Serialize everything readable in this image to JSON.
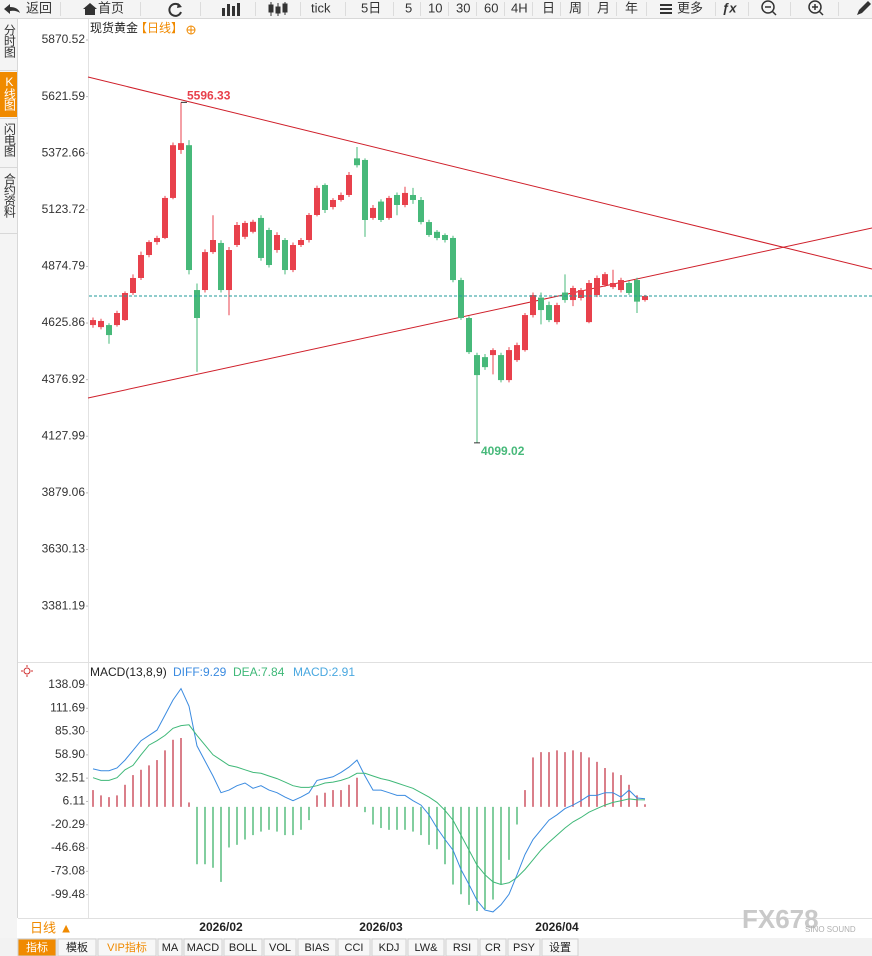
{
  "toolbar": {
    "items": [
      "返回",
      "首页",
      "tick",
      "5日",
      "5",
      "10",
      "30",
      "60",
      "4H",
      "日",
      "周",
      "月",
      "年",
      "更多",
      "ƒx"
    ]
  },
  "sidebar": {
    "tabs": [
      "分时图",
      "K线图",
      "闪电图",
      "合约资料"
    ],
    "active": 1
  },
  "chart_data": [
    {
      "type": "candlestick",
      "title": "现货黄金",
      "subtitle": "【日线】",
      "categories": [
        null,
        null,
        null,
        null,
        null,
        null,
        null,
        null,
        null,
        null,
        null,
        null,
        null,
        null,
        null,
        null,
        "2026/02",
        null,
        null,
        null,
        null,
        null,
        null,
        null,
        null,
        null,
        null,
        null,
        null,
        null,
        null,
        null,
        null,
        null,
        null,
        null,
        "2026/03",
        null,
        null,
        null,
        null,
        null,
        null,
        null,
        null,
        null,
        null,
        null,
        null,
        null,
        null,
        null,
        null,
        null,
        null,
        null,
        null,
        null,
        "2026/04",
        null,
        null,
        null,
        null,
        null,
        null,
        null,
        null,
        null,
        null,
        null
      ],
      "open": [
        4617,
        4608,
        4617,
        4617,
        4639,
        4758,
        4824,
        4925,
        4982,
        5000,
        5176,
        5387,
        5408,
        4771,
        4771,
        4938,
        4978,
        4771,
        4969,
        5005,
        5027,
        5088,
        5035,
        4947,
        4991,
        4859,
        4969,
        4991,
        5101,
        5233,
        5136,
        5167,
        5189,
        5350,
        5343,
        5088,
        5160,
        5088,
        5189,
        5145,
        5189,
        5167,
        5070,
        5027,
        5013,
        5000,
        4815,
        4648,
        4485,
        4476,
        4485,
        4485,
        4375,
        4463,
        4507,
        4661,
        4738,
        4705,
        4630,
        4760,
        4727,
        4736,
        4630,
        4749,
        4793,
        4784,
        4771,
        4802,
        4815,
        4727
      ],
      "high": [
        4650,
        4645,
        4625,
        4680,
        4765,
        4840,
        4940,
        4990,
        5010,
        5185,
        5420,
        5596.33,
        5430,
        4800,
        4950,
        5100,
        4990,
        4960,
        5070,
        5075,
        5080,
        5100,
        5045,
        5025,
        5000,
        4980,
        5000,
        5110,
        5230,
        5240,
        5175,
        5200,
        5290,
        5400,
        5350,
        5145,
        5170,
        5185,
        5200,
        5225,
        5220,
        5180,
        5080,
        5035,
        5020,
        5010,
        4825,
        4655,
        4495,
        4490,
        4515,
        4495,
        4520,
        4540,
        4670,
        4760,
        4760,
        4720,
        4715,
        4840,
        4790,
        4780,
        4815,
        4835,
        4850,
        4860,
        4825,
        4810,
        4825,
        4750
      ],
      "low": [
        4605,
        4598,
        4535,
        4610,
        4635,
        4750,
        4815,
        4915,
        4970,
        4995,
        5170,
        5370,
        4840,
        4411,
        4760,
        4930,
        4760,
        4660,
        4960,
        4995,
        5020,
        4900,
        4870,
        4935,
        4840,
        4850,
        4960,
        4980,
        5095,
        5110,
        5125,
        5160,
        5180,
        5310,
        5005,
        5080,
        5070,
        5080,
        5100,
        5135,
        5150,
        5060,
        5005,
        4990,
        4980,
        4805,
        4640,
        4490,
        4099.02,
        4420,
        4400,
        4365,
        4365,
        4455,
        4500,
        4650,
        4620,
        4630,
        4620,
        4715,
        4700,
        4725,
        4625,
        4740,
        4785,
        4775,
        4760,
        4750,
        4670,
        4720
      ],
      "close": [
        4639,
        4635,
        4573,
        4670,
        4758,
        4824,
        4925,
        4982,
        5000,
        5176,
        5408,
        5417,
        4859,
        4648,
        4938,
        4991,
        4771,
        4947,
        5057,
        5066,
        5071,
        4912,
        4881,
        5013,
        4859,
        4969,
        4991,
        5101,
        5220,
        5123,
        5167,
        5189,
        5277,
        5320,
        5079,
        5132,
        5079,
        5176,
        5145,
        5198,
        5167,
        5070,
        5013,
        5000,
        4991,
        4815,
        4648,
        4498,
        4397,
        4432,
        4507,
        4375,
        4507,
        4529,
        4661,
        4749,
        4683,
        4639,
        4705,
        4727,
        4780,
        4771,
        4802,
        4824,
        4841,
        4802,
        4815,
        4758,
        4720,
        4745
      ],
      "up_color": "#e8414c",
      "down_color": "#47b97a",
      "last_price_color": "#1f9a9a",
      "ylim": [
        3144.1,
        5949.7
      ],
      "yticks": [
        5870.52,
        5621.59,
        5372.66,
        5123.72,
        4874.79,
        4625.86,
        4376.92,
        4127.99,
        3879.06,
        3630.13,
        3381.19
      ]
    },
    {
      "type": "macd",
      "title": "MACD(13,8,9)",
      "series": [
        {
          "name": "DIFF:9.29",
          "color": "#3b8be0",
          "values": [
            43,
            41,
            41,
            44,
            53,
            64,
            75,
            81,
            87,
            104,
            121,
            134,
            114,
            69,
            52,
            35,
            16,
            19,
            24,
            27,
            21,
            24,
            19,
            16,
            11,
            7,
            11,
            16,
            30,
            32,
            34,
            39,
            45,
            53,
            35,
            19,
            19,
            16,
            13,
            13,
            7,
            2,
            -9,
            -24,
            -37,
            -49,
            -71,
            -88,
            -106,
            -117,
            -119,
            -111,
            -99,
            -77,
            -54,
            -37,
            -26,
            -15,
            -9,
            -2,
            2,
            7,
            13,
            13,
            16,
            16,
            11,
            19,
            10,
            9.29
          ]
        },
        {
          "name": "DEA:7.84",
          "color": "#3fb878",
          "values": [
            33,
            30,
            30,
            33,
            42,
            47,
            59,
            70,
            75,
            81,
            89,
            92,
            93,
            81,
            70,
            59,
            53,
            47,
            45,
            42,
            39,
            38,
            35,
            32,
            28,
            24,
            22,
            22,
            24,
            27,
            28,
            30,
            33,
            38,
            38,
            35,
            32,
            30,
            27,
            24,
            21,
            16,
            11,
            5,
            -4,
            -15,
            -32,
            -49,
            -66,
            -77,
            -85,
            -88,
            -86,
            -80,
            -71,
            -60,
            -49,
            -40,
            -32,
            -24,
            -17,
            -12,
            -6,
            -2,
            2,
            5,
            7,
            9,
            8,
            7.84
          ]
        },
        {
          "name": "MACD:2.91",
          "color": "#4aa8e0",
          "values": [
            19,
            13,
            11,
            13,
            25,
            36,
            42,
            47,
            53,
            64,
            76,
            78,
            5,
            -65,
            -65,
            -69,
            -85,
            -46,
            -43,
            -37,
            -32,
            -28,
            -26,
            -28,
            -32,
            -32,
            -26,
            -15,
            13,
            16,
            19,
            19,
            25,
            33,
            -6,
            -20,
            -24,
            -26,
            -26,
            -26,
            -28,
            -32,
            -43,
            -48,
            -65,
            -88,
            -99,
            -111,
            -118,
            -116,
            -105,
            -88,
            -60,
            -20,
            19,
            56,
            62,
            62,
            64,
            62,
            64,
            62,
            56,
            51,
            44,
            39,
            36,
            25,
            13,
            2.91
          ]
        }
      ],
      "up_color": "#c73a4a",
      "down_color": "#3fb36b",
      "ylim": [
        -122.5,
        157.3
      ],
      "yticks": [
        138.09,
        111.69,
        {
          "value": 85.3,
          "label": "85.30"
        },
        {
          "value": 58.9,
          "label": "58.90"
        },
        32.51,
        6.11,
        -20.29,
        -46.68,
        -73.08,
        -99.48
      ]
    }
  ],
  "bottom_bar": {
    "period": "日线 ▲",
    "tabs": [
      "指标",
      "模板",
      "VIP指标",
      "MA",
      "MACD",
      "BOLL",
      "VOL",
      "BIAS",
      "CCI",
      "KDJ",
      "LW&",
      "RSI",
      "CR",
      "PSY",
      "设置"
    ],
    "active": 0
  },
  "watermark": {
    "logo": "FX678",
    "sub": "SINO SOUND"
  }
}
